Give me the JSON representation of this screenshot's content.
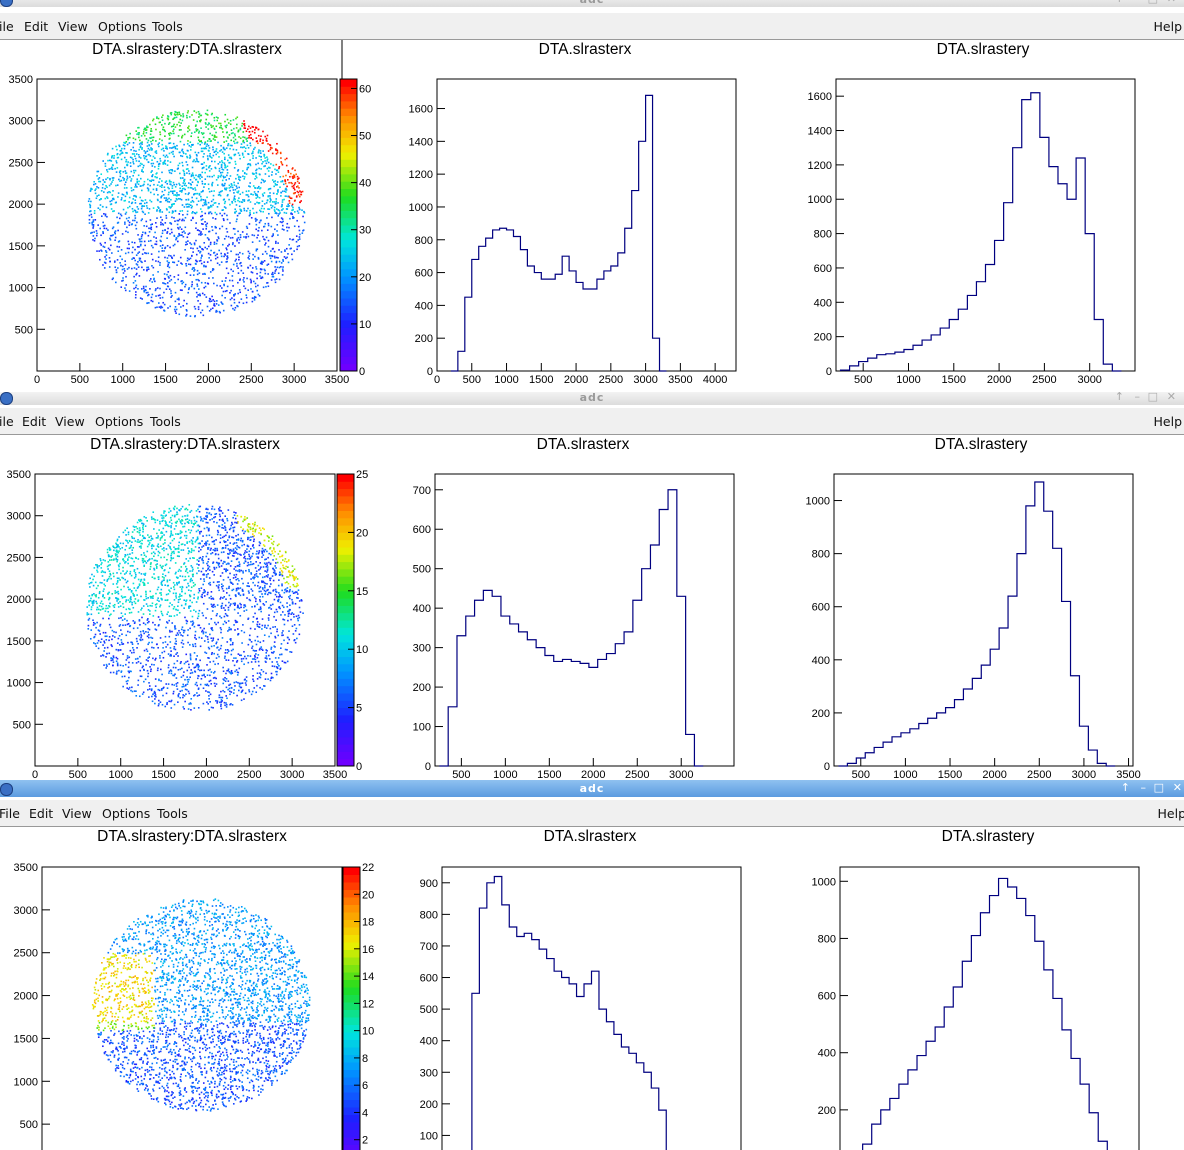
{
  "windows": [
    {
      "title": "adc",
      "active": false,
      "menu": [
        "ile",
        "Edit",
        "View",
        "Options",
        "Tools"
      ],
      "help": "Help",
      "scatter": {
        "title": "DTA.slrastery:DTA.slrasterx",
        "colorbar": {
          "max": 62,
          "ticks": [
            0,
            10,
            20,
            30,
            40,
            50,
            60
          ]
        }
      },
      "chart_data": [
        {
          "type": "heatmap",
          "title": "DTA.slrastery:DTA.slrasterx",
          "xlim": [
            0,
            3500
          ],
          "ylim": [
            0,
            3500
          ],
          "xticks": [
            0,
            500,
            1000,
            1500,
            2000,
            2500,
            3000,
            3500
          ],
          "yticks": [
            500,
            1000,
            1500,
            2000,
            2500,
            3000,
            3500
          ],
          "zmax": 62
        },
        {
          "type": "bar",
          "title": "DTA.slrasterx",
          "xlim": [
            0,
            4300
          ],
          "ylim": [
            0,
            1780
          ],
          "xticks": [
            0,
            500,
            1000,
            1500,
            2000,
            2500,
            3000,
            3500,
            4000
          ],
          "yticks": [
            0,
            200,
            400,
            600,
            800,
            1000,
            1200,
            1400,
            1600
          ],
          "x": [
            250,
            350,
            450,
            550,
            650,
            750,
            850,
            950,
            1050,
            1150,
            1250,
            1350,
            1450,
            1550,
            1650,
            1750,
            1850,
            1950,
            2050,
            2150,
            2250,
            2350,
            2450,
            2550,
            2650,
            2750,
            2850,
            2950,
            3050,
            3150,
            3250
          ],
          "values": [
            0,
            120,
            450,
            680,
            760,
            810,
            860,
            870,
            860,
            820,
            740,
            640,
            600,
            560,
            560,
            590,
            700,
            610,
            540,
            500,
            500,
            560,
            610,
            640,
            720,
            870,
            1100,
            1400,
            1680,
            200,
            0
          ]
        },
        {
          "type": "bar",
          "title": "DTA.slrastery",
          "xlim": [
            200,
            3500
          ],
          "ylim": [
            0,
            1700
          ],
          "xticks": [
            500,
            1000,
            1500,
            2000,
            2500,
            3000
          ],
          "yticks": [
            0,
            200,
            400,
            600,
            800,
            1000,
            1200,
            1400,
            1600
          ],
          "x": [
            300,
            400,
            500,
            600,
            700,
            800,
            900,
            1000,
            1100,
            1200,
            1300,
            1400,
            1500,
            1600,
            1700,
            1800,
            1900,
            2000,
            2100,
            2200,
            2300,
            2400,
            2500,
            2600,
            2700,
            2800,
            2900,
            3000,
            3100,
            3200,
            3300
          ],
          "values": [
            5,
            30,
            55,
            75,
            95,
            100,
            110,
            125,
            150,
            180,
            210,
            250,
            300,
            360,
            440,
            520,
            620,
            760,
            980,
            1300,
            1580,
            1620,
            1360,
            1190,
            1090,
            1000,
            1240,
            800,
            300,
            40,
            0
          ]
        }
      ]
    },
    {
      "title": "adc",
      "active": false,
      "menu": [
        "ile",
        "Edit",
        "View",
        "Options",
        "Tools"
      ],
      "help": "Help",
      "scatter": {
        "title": "DTA.slrastery:DTA.slrasterx",
        "colorbar": {
          "max": 25,
          "ticks": [
            0,
            5,
            10,
            15,
            20,
            25
          ]
        }
      },
      "chart_data": [
        {
          "type": "heatmap",
          "title": "DTA.slrastery:DTA.slrasterx",
          "xlim": [
            0,
            3500
          ],
          "ylim": [
            0,
            3500
          ],
          "xticks": [
            0,
            500,
            1000,
            1500,
            2000,
            2500,
            3000,
            3500
          ],
          "yticks": [
            500,
            1000,
            1500,
            2000,
            2500,
            3000,
            3500
          ],
          "zmax": 25
        },
        {
          "type": "bar",
          "title": "DTA.slrasterx",
          "xlim": [
            200,
            3600
          ],
          "ylim": [
            0,
            740
          ],
          "xticks": [
            500,
            1000,
            1500,
            2000,
            2500,
            3000
          ],
          "yticks": [
            0,
            100,
            200,
            300,
            400,
            500,
            600,
            700
          ],
          "x": [
            300,
            400,
            500,
            600,
            700,
            800,
            900,
            1000,
            1100,
            1200,
            1300,
            1400,
            1500,
            1600,
            1700,
            1800,
            1900,
            2000,
            2100,
            2200,
            2300,
            2400,
            2500,
            2600,
            2700,
            2800,
            2900,
            3000,
            3100,
            3200
          ],
          "values": [
            0,
            150,
            330,
            380,
            420,
            445,
            430,
            380,
            360,
            340,
            320,
            300,
            280,
            265,
            270,
            265,
            260,
            250,
            270,
            285,
            310,
            340,
            420,
            500,
            560,
            650,
            700,
            430,
            80,
            0
          ]
        },
        {
          "type": "bar",
          "title": "DTA.slrastery",
          "xlim": [
            200,
            3550
          ],
          "ylim": [
            0,
            1100
          ],
          "xticks": [
            500,
            1000,
            1500,
            2000,
            2500,
            3000,
            3500
          ],
          "yticks": [
            0,
            200,
            400,
            600,
            800,
            1000
          ],
          "x": [
            300,
            400,
            500,
            600,
            700,
            800,
            900,
            1000,
            1100,
            1200,
            1300,
            1400,
            1500,
            1600,
            1700,
            1800,
            1900,
            2000,
            2100,
            2200,
            2300,
            2400,
            2500,
            2600,
            2700,
            2800,
            2900,
            3000,
            3100,
            3200,
            3300
          ],
          "values": [
            0,
            10,
            30,
            50,
            70,
            90,
            110,
            125,
            140,
            160,
            180,
            200,
            220,
            250,
            290,
            330,
            380,
            440,
            520,
            640,
            800,
            980,
            1070,
            960,
            820,
            620,
            340,
            150,
            60,
            10,
            0
          ]
        }
      ]
    },
    {
      "title": "adc",
      "active": true,
      "menu": [
        "File",
        "Edit",
        "View",
        "Options",
        "Tools"
      ],
      "help": "Help",
      "scatter": {
        "title": "DTA.slrastery:DTA.slrasterx",
        "colorbar": {
          "max": 22,
          "ticks": [
            2,
            4,
            6,
            8,
            10,
            12,
            14,
            16,
            18,
            20,
            22
          ]
        }
      },
      "chart_data": [
        {
          "type": "heatmap",
          "title": "DTA.slrastery:DTA.slrasterx",
          "xlim": [
            0,
            3500
          ],
          "ylim": [
            0,
            3500
          ],
          "yticks": [
            500,
            1000,
            1500,
            2000,
            2500,
            3000,
            3500
          ],
          "zmax": 22
        },
        {
          "type": "bar",
          "title": "DTA.slrasterx",
          "xlim": [
            0,
            4000
          ],
          "ylim": [
            0,
            950
          ],
          "yticks": [
            100,
            200,
            300,
            400,
            500,
            600,
            700,
            800,
            900
          ],
          "x": [
            350,
            450,
            550,
            650,
            750,
            850,
            950,
            1050,
            1150,
            1250,
            1350,
            1450,
            1550,
            1650,
            1750,
            1850,
            1950,
            2050,
            2150,
            2250,
            2350,
            2450,
            2550,
            2650,
            2750,
            2850,
            2950,
            3050
          ],
          "values": [
            0,
            550,
            820,
            900,
            920,
            830,
            760,
            730,
            740,
            720,
            690,
            660,
            620,
            600,
            580,
            540,
            580,
            620,
            500,
            460,
            420,
            380,
            360,
            330,
            300,
            250,
            180,
            0
          ]
        },
        {
          "type": "bar",
          "title": "DTA.slrastery",
          "xlim": [
            200,
            3500
          ],
          "ylim": [
            0,
            1050
          ],
          "yticks": [
            200,
            400,
            600,
            800,
            1000
          ],
          "x": [
            300,
            400,
            500,
            600,
            700,
            800,
            900,
            1000,
            1100,
            1200,
            1300,
            1400,
            1500,
            1600,
            1700,
            1800,
            1900,
            2000,
            2100,
            2200,
            2300,
            2400,
            2500,
            2600,
            2700,
            2800,
            2900,
            3000,
            3100,
            3200
          ],
          "values": [
            0,
            30,
            80,
            150,
            200,
            240,
            290,
            340,
            390,
            440,
            490,
            560,
            630,
            720,
            810,
            890,
            950,
            1010,
            980,
            940,
            880,
            790,
            690,
            590,
            480,
            380,
            290,
            190,
            90,
            0
          ]
        }
      ]
    }
  ]
}
